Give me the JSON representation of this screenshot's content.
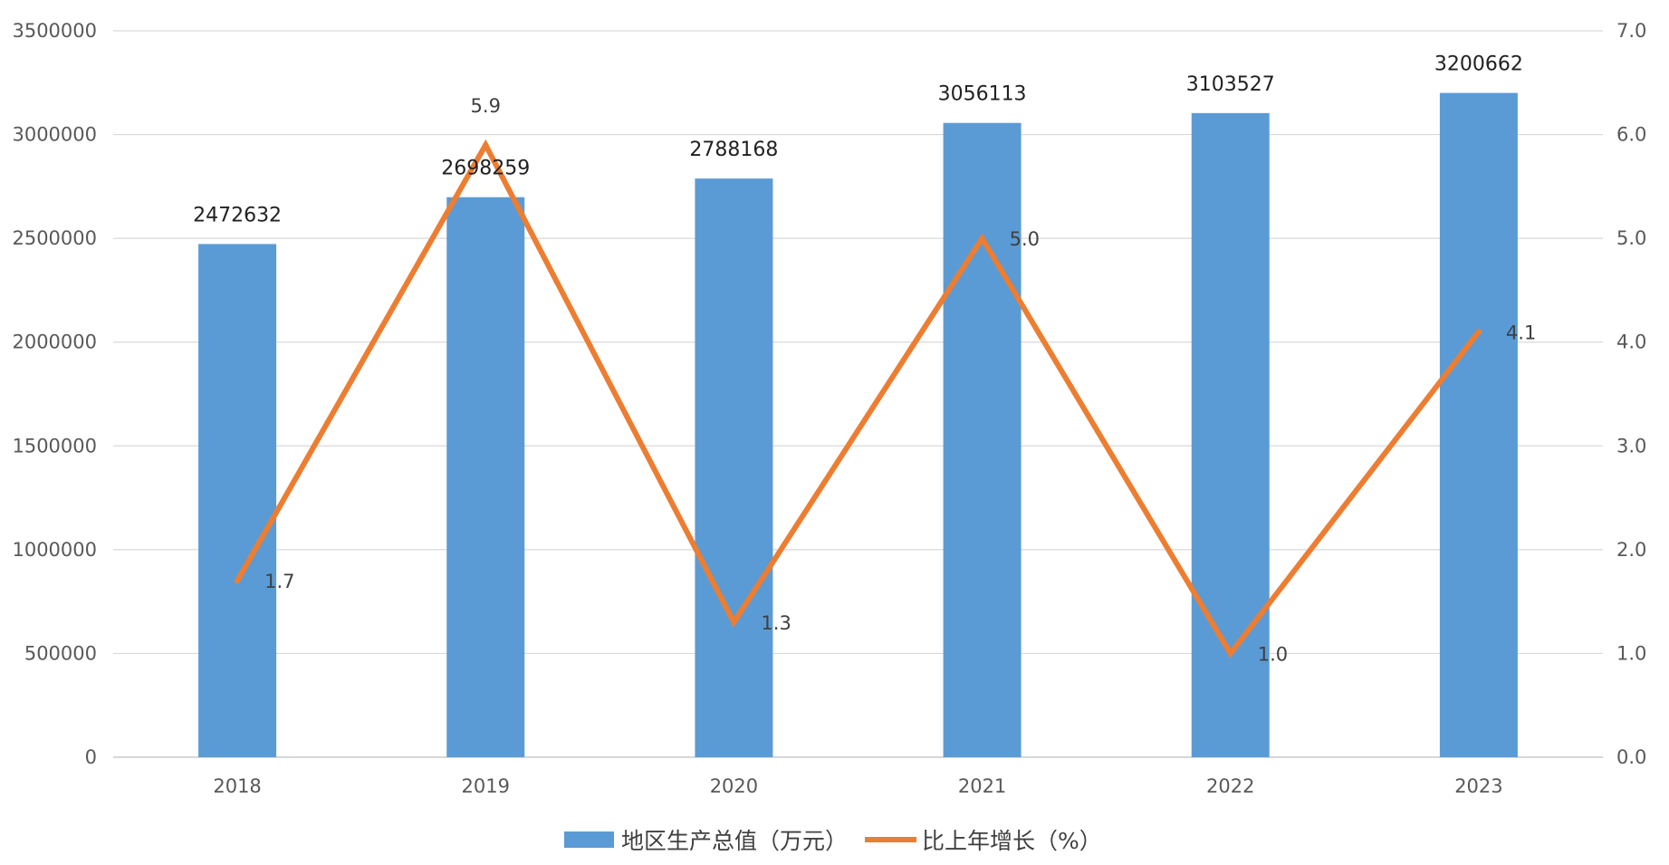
{
  "chart_data": {
    "type": "bar",
    "categories": [
      "2018",
      "2019",
      "2020",
      "2021",
      "2022",
      "2023"
    ],
    "series": [
      {
        "name": "地区生产总值（万元）",
        "type": "bar",
        "axis": "left",
        "color": "#5b9bd5",
        "values": [
          2472632,
          2698259,
          2788168,
          3056113,
          3103527,
          3200662
        ],
        "labels": [
          "2472632",
          "2698259",
          "2788168",
          "3056113",
          "3103527",
          "3200662"
        ]
      },
      {
        "name": "比上年增长（%）",
        "type": "line",
        "axis": "right",
        "color": "#ed7d31",
        "values": [
          1.7,
          5.9,
          1.3,
          5.0,
          1.0,
          4.1
        ],
        "labels": [
          "1.7",
          "5.9",
          "1.3",
          "5.0",
          "1.0",
          "4.1"
        ]
      }
    ],
    "y_left": {
      "range": [
        0,
        3500000
      ],
      "ticks": [
        "0",
        "500000",
        "1000000",
        "1500000",
        "2000000",
        "2500000",
        "3000000",
        "3500000"
      ]
    },
    "y_right": {
      "range": [
        0,
        7.0
      ],
      "ticks": [
        "0.0",
        "1.0",
        "2.0",
        "3.0",
        "4.0",
        "5.0",
        "6.0",
        "7.0"
      ]
    },
    "grid": true,
    "legend_position": "bottom-center"
  }
}
